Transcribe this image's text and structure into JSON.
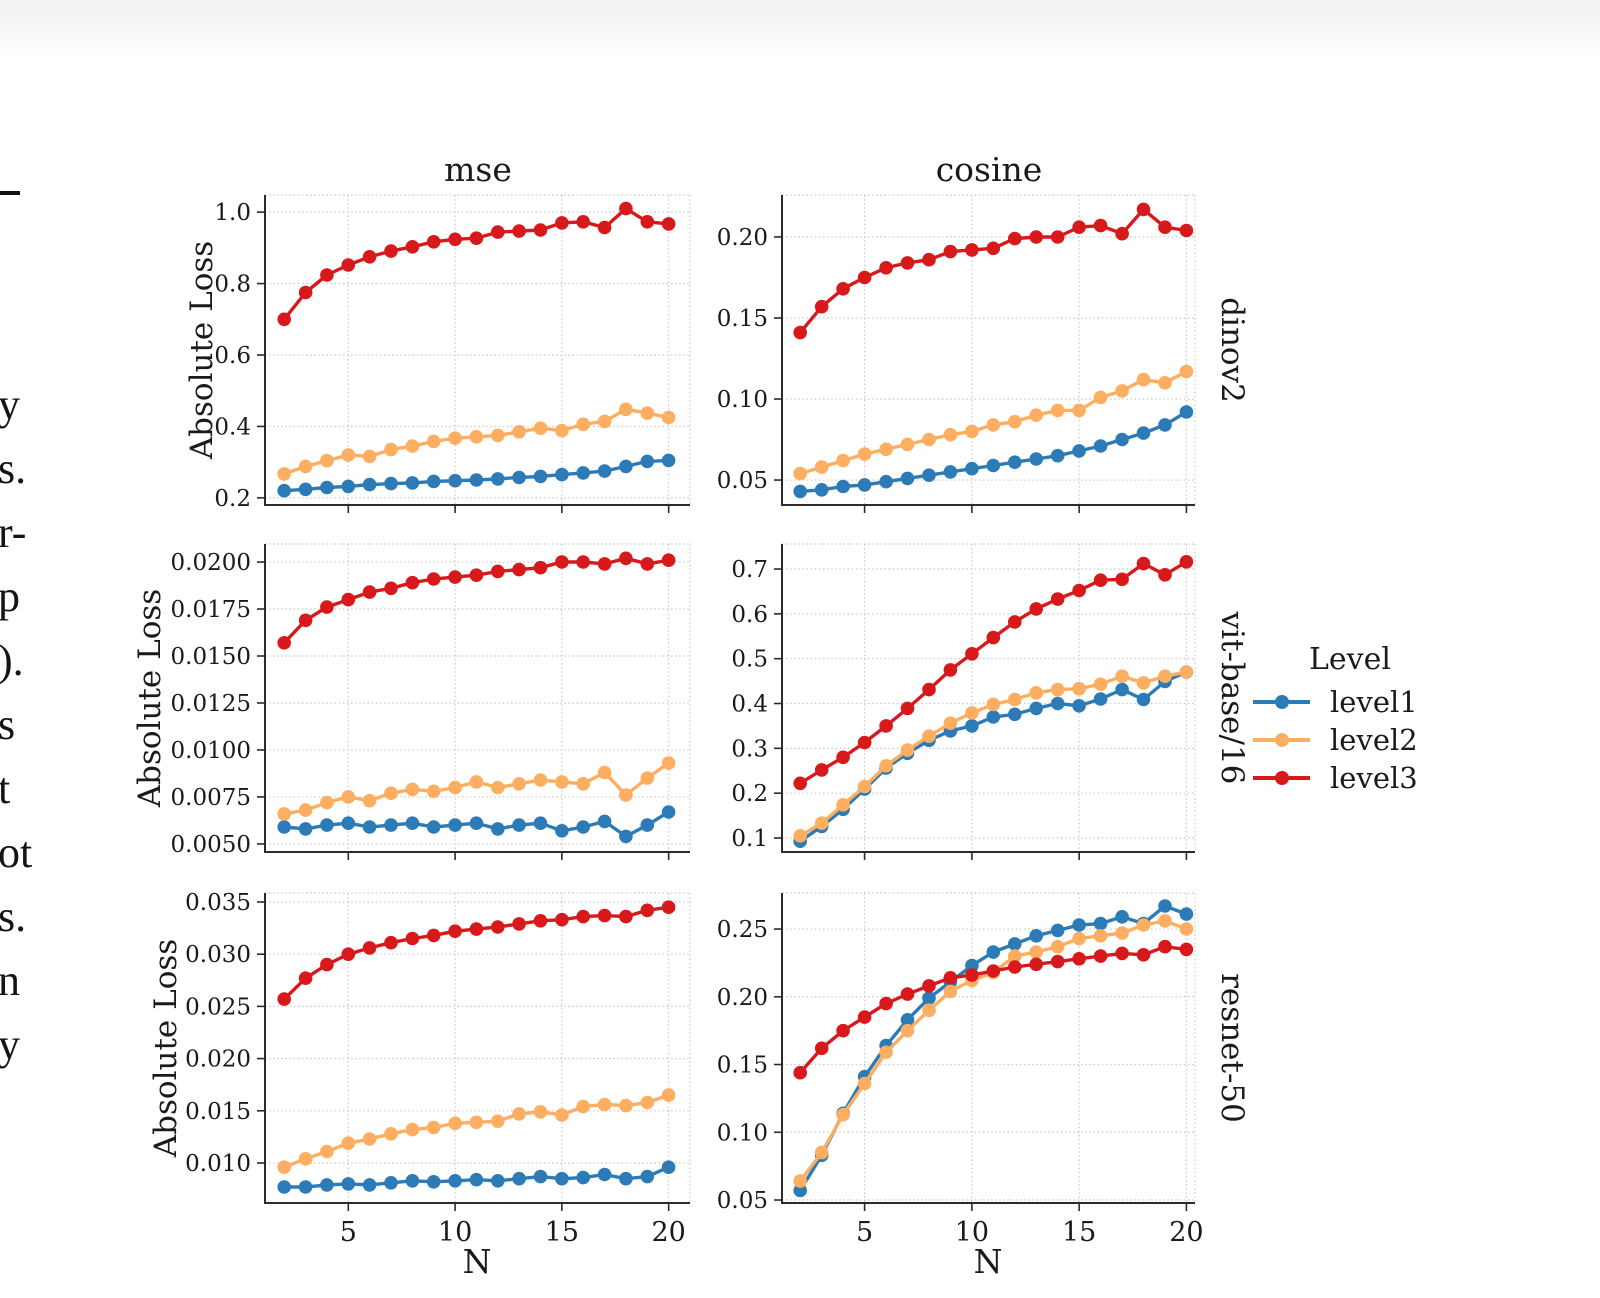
{
  "left_column_text": {
    "fragments": [
      {
        "text": "y"
      },
      {
        "text": "s."
      },
      {
        "text": "r-"
      },
      {
        "text": "p"
      },
      {
        "text": ")."
      },
      {
        "text": "s"
      },
      {
        "text": "t"
      },
      {
        "text": "ot"
      },
      {
        "text": "s."
      },
      {
        "text": "n"
      },
      {
        "text": "y"
      }
    ]
  },
  "figure": {
    "column_titles": [
      "mse",
      "cosine"
    ],
    "row_labels": [
      "dinov2",
      "vit-base/16",
      "resnet-50"
    ],
    "ylabel": "Absolute Loss",
    "xlabel": "N",
    "legend": {
      "title": "Level",
      "entries": [
        {
          "label": "level1",
          "color": "#2c7bb6"
        },
        {
          "label": "level2",
          "color": "#fdae61"
        },
        {
          "label": "level3",
          "color": "#d7191c"
        }
      ]
    }
  },
  "chart_data": [
    {
      "type": "line",
      "row": "dinov2",
      "metric": "mse",
      "x": [
        2,
        3,
        4,
        5,
        6,
        7,
        8,
        9,
        10,
        11,
        12,
        13,
        14,
        15,
        16,
        17,
        18,
        19,
        20
      ],
      "xticks": [
        5,
        10,
        15,
        20
      ],
      "show_xtick_labels": false,
      "yticks": [
        0.2,
        0.4,
        0.6,
        0.8,
        1.0
      ],
      "ytick_labels": [
        "0.2",
        "0.4",
        "0.6",
        "0.8",
        "1.0"
      ],
      "ylim": [
        0.18,
        1.048
      ],
      "xlim": [
        1.1,
        21.0
      ],
      "grid": true,
      "series": [
        {
          "name": "level1",
          "color": "#2c7bb6",
          "values": [
            0.22,
            0.224,
            0.229,
            0.232,
            0.237,
            0.24,
            0.242,
            0.246,
            0.248,
            0.25,
            0.253,
            0.257,
            0.26,
            0.265,
            0.27,
            0.275,
            0.288,
            0.302,
            0.305
          ]
        },
        {
          "name": "level2",
          "color": "#fdae61",
          "values": [
            0.267,
            0.288,
            0.304,
            0.32,
            0.316,
            0.335,
            0.345,
            0.358,
            0.367,
            0.371,
            0.375,
            0.385,
            0.395,
            0.388,
            0.406,
            0.414,
            0.448,
            0.437,
            0.425
          ]
        },
        {
          "name": "level3",
          "color": "#d7191c",
          "values": [
            0.7,
            0.775,
            0.824,
            0.852,
            0.875,
            0.891,
            0.903,
            0.917,
            0.924,
            0.927,
            0.944,
            0.947,
            0.95,
            0.97,
            0.973,
            0.957,
            1.01,
            0.973,
            0.967
          ]
        }
      ]
    },
    {
      "type": "line",
      "row": "dinov2",
      "metric": "cosine",
      "x": [
        2,
        3,
        4,
        5,
        6,
        7,
        8,
        9,
        10,
        11,
        12,
        13,
        14,
        15,
        16,
        17,
        18,
        19,
        20
      ],
      "xticks": [
        5,
        10,
        15,
        20
      ],
      "show_xtick_labels": false,
      "yticks": [
        0.05,
        0.1,
        0.15,
        0.2
      ],
      "ytick_labels": [
        "0.05",
        "0.10",
        "0.15",
        "0.20"
      ],
      "ylim": [
        0.0346,
        0.2259
      ],
      "xlim": [
        1.15,
        20.4
      ],
      "grid": true,
      "series": [
        {
          "name": "level1",
          "color": "#2c7bb6",
          "values": [
            0.043,
            0.044,
            0.046,
            0.047,
            0.049,
            0.051,
            0.053,
            0.055,
            0.057,
            0.059,
            0.061,
            0.063,
            0.065,
            0.068,
            0.071,
            0.075,
            0.079,
            0.084,
            0.092
          ]
        },
        {
          "name": "level2",
          "color": "#fdae61",
          "values": [
            0.054,
            0.058,
            0.062,
            0.066,
            0.069,
            0.072,
            0.075,
            0.078,
            0.08,
            0.084,
            0.086,
            0.09,
            0.093,
            0.093,
            0.101,
            0.105,
            0.112,
            0.11,
            0.117
          ]
        },
        {
          "name": "level3",
          "color": "#d7191c",
          "values": [
            0.141,
            0.157,
            0.168,
            0.175,
            0.181,
            0.184,
            0.186,
            0.191,
            0.192,
            0.193,
            0.199,
            0.2,
            0.2,
            0.206,
            0.207,
            0.202,
            0.217,
            0.206,
            0.204
          ]
        }
      ]
    },
    {
      "type": "line",
      "row": "vit-base/16",
      "metric": "mse",
      "x": [
        2,
        3,
        4,
        5,
        6,
        7,
        8,
        9,
        10,
        11,
        12,
        13,
        14,
        15,
        16,
        17,
        18,
        19,
        20
      ],
      "xticks": [
        5,
        10,
        15,
        20
      ],
      "show_xtick_labels": false,
      "yticks": [
        0.005,
        0.0075,
        0.01,
        0.0125,
        0.015,
        0.0175,
        0.02
      ],
      "ytick_labels": [
        "0.0050",
        "0.0075",
        "0.0100",
        "0.0125",
        "0.0150",
        "0.0175",
        "0.0200"
      ],
      "ylim": [
        0.00457,
        0.02096
      ],
      "xlim": [
        1.1,
        21.0
      ],
      "grid": true,
      "series": [
        {
          "name": "level1",
          "color": "#2c7bb6",
          "values": [
            0.0059,
            0.0058,
            0.006,
            0.0061,
            0.0059,
            0.006,
            0.0061,
            0.0059,
            0.006,
            0.0061,
            0.0058,
            0.006,
            0.0061,
            0.0057,
            0.0059,
            0.0062,
            0.0054,
            0.006,
            0.0067
          ]
        },
        {
          "name": "level2",
          "color": "#fdae61",
          "values": [
            0.0066,
            0.0068,
            0.0072,
            0.0075,
            0.0073,
            0.0077,
            0.0079,
            0.0078,
            0.008,
            0.0083,
            0.008,
            0.0082,
            0.0084,
            0.0083,
            0.0082,
            0.0088,
            0.0076,
            0.0085,
            0.0093
          ]
        },
        {
          "name": "level3",
          "color": "#d7191c",
          "values": [
            0.0157,
            0.0169,
            0.0176,
            0.018,
            0.0184,
            0.0186,
            0.0189,
            0.0191,
            0.0192,
            0.0193,
            0.0195,
            0.0196,
            0.0197,
            0.02,
            0.02,
            0.0199,
            0.0202,
            0.0199,
            0.0201
          ]
        }
      ]
    },
    {
      "type": "line",
      "row": "vit-base/16",
      "metric": "cosine",
      "x": [
        2,
        3,
        4,
        5,
        6,
        7,
        8,
        9,
        10,
        11,
        12,
        13,
        14,
        15,
        16,
        17,
        18,
        19,
        20
      ],
      "xticks": [
        5,
        10,
        15,
        20
      ],
      "show_xtick_labels": false,
      "yticks": [
        0.1,
        0.2,
        0.3,
        0.4,
        0.5,
        0.6,
        0.7
      ],
      "ytick_labels": [
        "0.1",
        "0.2",
        "0.3",
        "0.4",
        "0.5",
        "0.6",
        "0.7"
      ],
      "ylim": [
        0.0688,
        0.7558
      ],
      "xlim": [
        1.15,
        20.4
      ],
      "grid": true,
      "series": [
        {
          "name": "level1",
          "color": "#2c7bb6",
          "values": [
            0.093,
            0.126,
            0.164,
            0.209,
            0.256,
            0.289,
            0.318,
            0.339,
            0.35,
            0.37,
            0.376,
            0.389,
            0.4,
            0.395,
            0.41,
            0.431,
            0.409,
            0.449,
            0.47
          ]
        },
        {
          "name": "level2",
          "color": "#fdae61",
          "values": [
            0.105,
            0.133,
            0.174,
            0.215,
            0.261,
            0.296,
            0.327,
            0.356,
            0.379,
            0.398,
            0.409,
            0.424,
            0.431,
            0.433,
            0.443,
            0.461,
            0.446,
            0.461,
            0.47
          ]
        },
        {
          "name": "level3",
          "color": "#d7191c",
          "values": [
            0.222,
            0.252,
            0.28,
            0.313,
            0.35,
            0.389,
            0.431,
            0.475,
            0.511,
            0.547,
            0.582,
            0.611,
            0.633,
            0.652,
            0.675,
            0.677,
            0.712,
            0.687,
            0.716
          ]
        }
      ]
    },
    {
      "type": "line",
      "row": "resnet-50",
      "metric": "mse",
      "x": [
        2,
        3,
        4,
        5,
        6,
        7,
        8,
        9,
        10,
        11,
        12,
        13,
        14,
        15,
        16,
        17,
        18,
        19,
        20
      ],
      "xticks": [
        5,
        10,
        15,
        20
      ],
      "show_xtick_labels": true,
      "yticks": [
        0.01,
        0.015,
        0.02,
        0.025,
        0.03,
        0.035
      ],
      "ytick_labels": [
        "0.010",
        "0.015",
        "0.020",
        "0.025",
        "0.030",
        "0.035"
      ],
      "ylim": [
        0.00617,
        0.03586
      ],
      "xlim": [
        1.1,
        21.0
      ],
      "grid": true,
      "series": [
        {
          "name": "level1",
          "color": "#2c7bb6",
          "values": [
            0.0077,
            0.0077,
            0.0079,
            0.008,
            0.0079,
            0.0081,
            0.0083,
            0.0082,
            0.0083,
            0.0084,
            0.0083,
            0.0085,
            0.0087,
            0.0085,
            0.0086,
            0.0089,
            0.0085,
            0.0087,
            0.0096
          ]
        },
        {
          "name": "level2",
          "color": "#fdae61",
          "values": [
            0.0096,
            0.0104,
            0.0111,
            0.0119,
            0.0123,
            0.0128,
            0.0132,
            0.0134,
            0.0138,
            0.0139,
            0.014,
            0.0147,
            0.0149,
            0.0146,
            0.0154,
            0.0156,
            0.0155,
            0.0158,
            0.0165
          ]
        },
        {
          "name": "level3",
          "color": "#d7191c",
          "values": [
            0.0257,
            0.0277,
            0.029,
            0.03,
            0.0306,
            0.0311,
            0.0315,
            0.0318,
            0.0322,
            0.0324,
            0.0326,
            0.0329,
            0.0332,
            0.0333,
            0.0336,
            0.0337,
            0.0336,
            0.0342,
            0.0345
          ]
        }
      ]
    },
    {
      "type": "line",
      "row": "resnet-50",
      "metric": "cosine",
      "x": [
        2,
        3,
        4,
        5,
        6,
        7,
        8,
        9,
        10,
        11,
        12,
        13,
        14,
        15,
        16,
        17,
        18,
        19,
        20
      ],
      "xticks": [
        5,
        10,
        15,
        20
      ],
      "show_xtick_labels": true,
      "yticks": [
        0.05,
        0.1,
        0.15,
        0.2,
        0.25
      ],
      "ytick_labels": [
        "0.05",
        "0.10",
        "0.15",
        "0.20",
        "0.25"
      ],
      "ylim": [
        0.0478,
        0.2766
      ],
      "xlim": [
        1.15,
        20.4
      ],
      "grid": true,
      "series": [
        {
          "name": "level1",
          "color": "#2c7bb6",
          "values": [
            0.057,
            0.083,
            0.114,
            0.141,
            0.164,
            0.183,
            0.199,
            0.211,
            0.223,
            0.233,
            0.239,
            0.245,
            0.249,
            0.253,
            0.254,
            0.259,
            0.254,
            0.267,
            0.261
          ]
        },
        {
          "name": "level2",
          "color": "#fdae61",
          "values": [
            0.064,
            0.085,
            0.113,
            0.136,
            0.159,
            0.175,
            0.19,
            0.204,
            0.212,
            0.218,
            0.23,
            0.233,
            0.237,
            0.243,
            0.245,
            0.247,
            0.253,
            0.256,
            0.25
          ]
        },
        {
          "name": "level3",
          "color": "#d7191c",
          "values": [
            0.144,
            0.162,
            0.175,
            0.185,
            0.195,
            0.202,
            0.208,
            0.214,
            0.216,
            0.219,
            0.222,
            0.224,
            0.226,
            0.228,
            0.23,
            0.232,
            0.231,
            0.237,
            0.235
          ]
        }
      ]
    }
  ]
}
